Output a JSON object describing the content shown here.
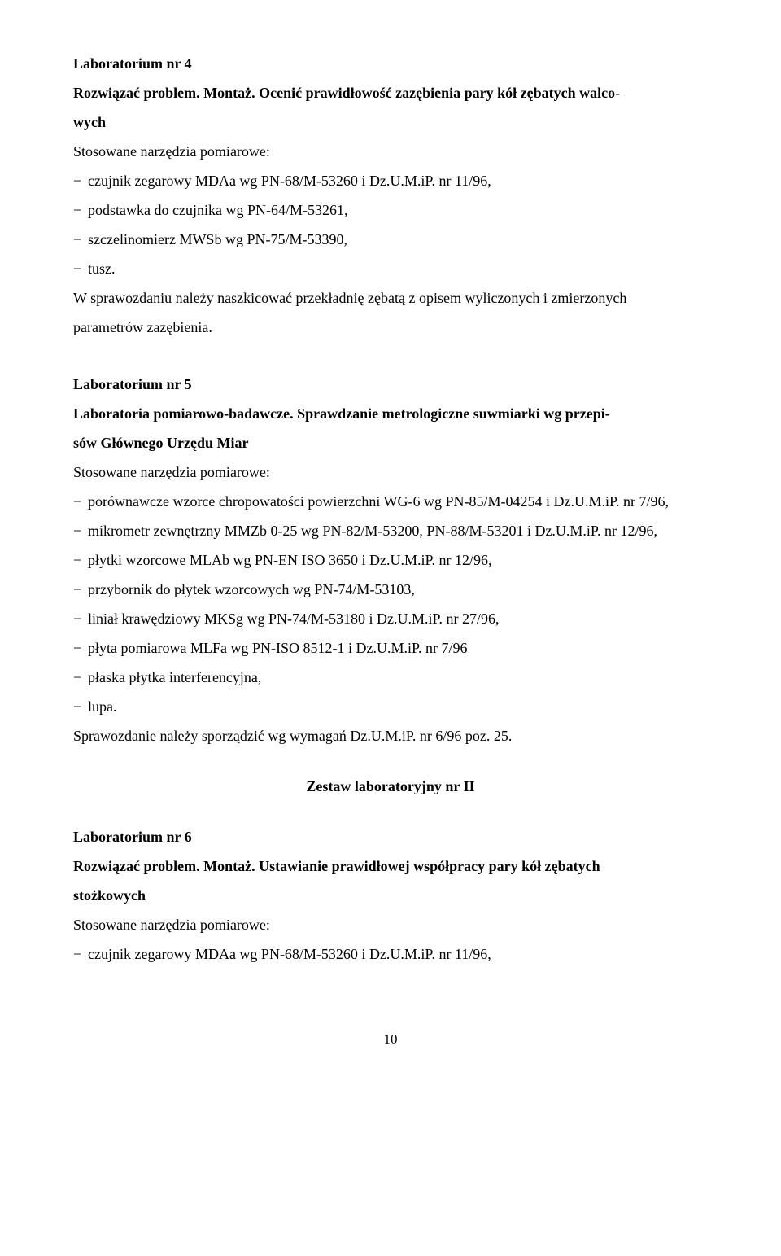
{
  "lab4": {
    "heading": "Laboratorium nr 4",
    "title1": "Rozwiązać problem. Montaż. Ocenić prawidłowość zazębienia pary kół zębatych walco-",
    "title2": "wych",
    "tools_label": "Stosowane narzędzia pomiarowe:",
    "items": [
      "czujnik zegarowy MDAa wg PN-68/M-53260 i Dz.U.M.iP. nr 11/96,",
      "podstawka do czujnika wg PN-64/M-53261,",
      "szczelinomierz MWSb wg PN-75/M-53390,",
      "tusz."
    ],
    "note1": "W sprawozdaniu należy naszkicować przekładnię zębatą z opisem wyliczonych i zmierzonych",
    "note2": "parametrów zazębienia."
  },
  "lab5": {
    "heading": "Laboratorium nr 5",
    "title1": "Laboratoria pomiarowo-badawcze. Sprawdzanie metrologiczne suwmiarki wg przepi-",
    "title2": "sów Głównego Urzędu Miar",
    "tools_label": "Stosowane narzędzia pomiarowe:",
    "items": [
      "porównawcze wzorce chropowatości powierzchni WG-6 wg PN-85/M-04254 i Dz.U.M.iP. nr 7/96,",
      "mikrometr zewnętrzny MMZb 0-25 wg PN-82/M-53200, PN-88/M-53201 i Dz.U.M.iP. nr 12/96,",
      "płytki wzorcowe MLAb wg PN-EN ISO 3650 i Dz.U.M.iP. nr 12/96,",
      "przybornik do płytek wzorcowych wg PN-74/M-53103,",
      "liniał krawędziowy MKSg wg PN-74/M-53180 i Dz.U.M.iP. nr 27/96,",
      "płyta pomiarowa MLFa wg PN-ISO 8512-1 i Dz.U.M.iP. nr 7/96",
      "płaska płytka interferencyjna,",
      "lupa."
    ],
    "note": "Sprawozdanie należy sporządzić wg wymagań Dz.U.M.iP. nr 6/96 poz. 25."
  },
  "set2_title": "Zestaw laboratoryjny nr II",
  "lab6": {
    "heading": "Laboratorium nr 6",
    "title1": "Rozwiązać problem. Montaż. Ustawianie prawidłowej współpracy pary kół zębatych",
    "title2": "stożkowych",
    "tools_label": "Stosowane narzędzia pomiarowe:",
    "items": [
      "czujnik zegarowy MDAa wg PN-68/M-53260 i Dz.U.M.iP. nr 11/96,"
    ]
  },
  "page_number": "10"
}
